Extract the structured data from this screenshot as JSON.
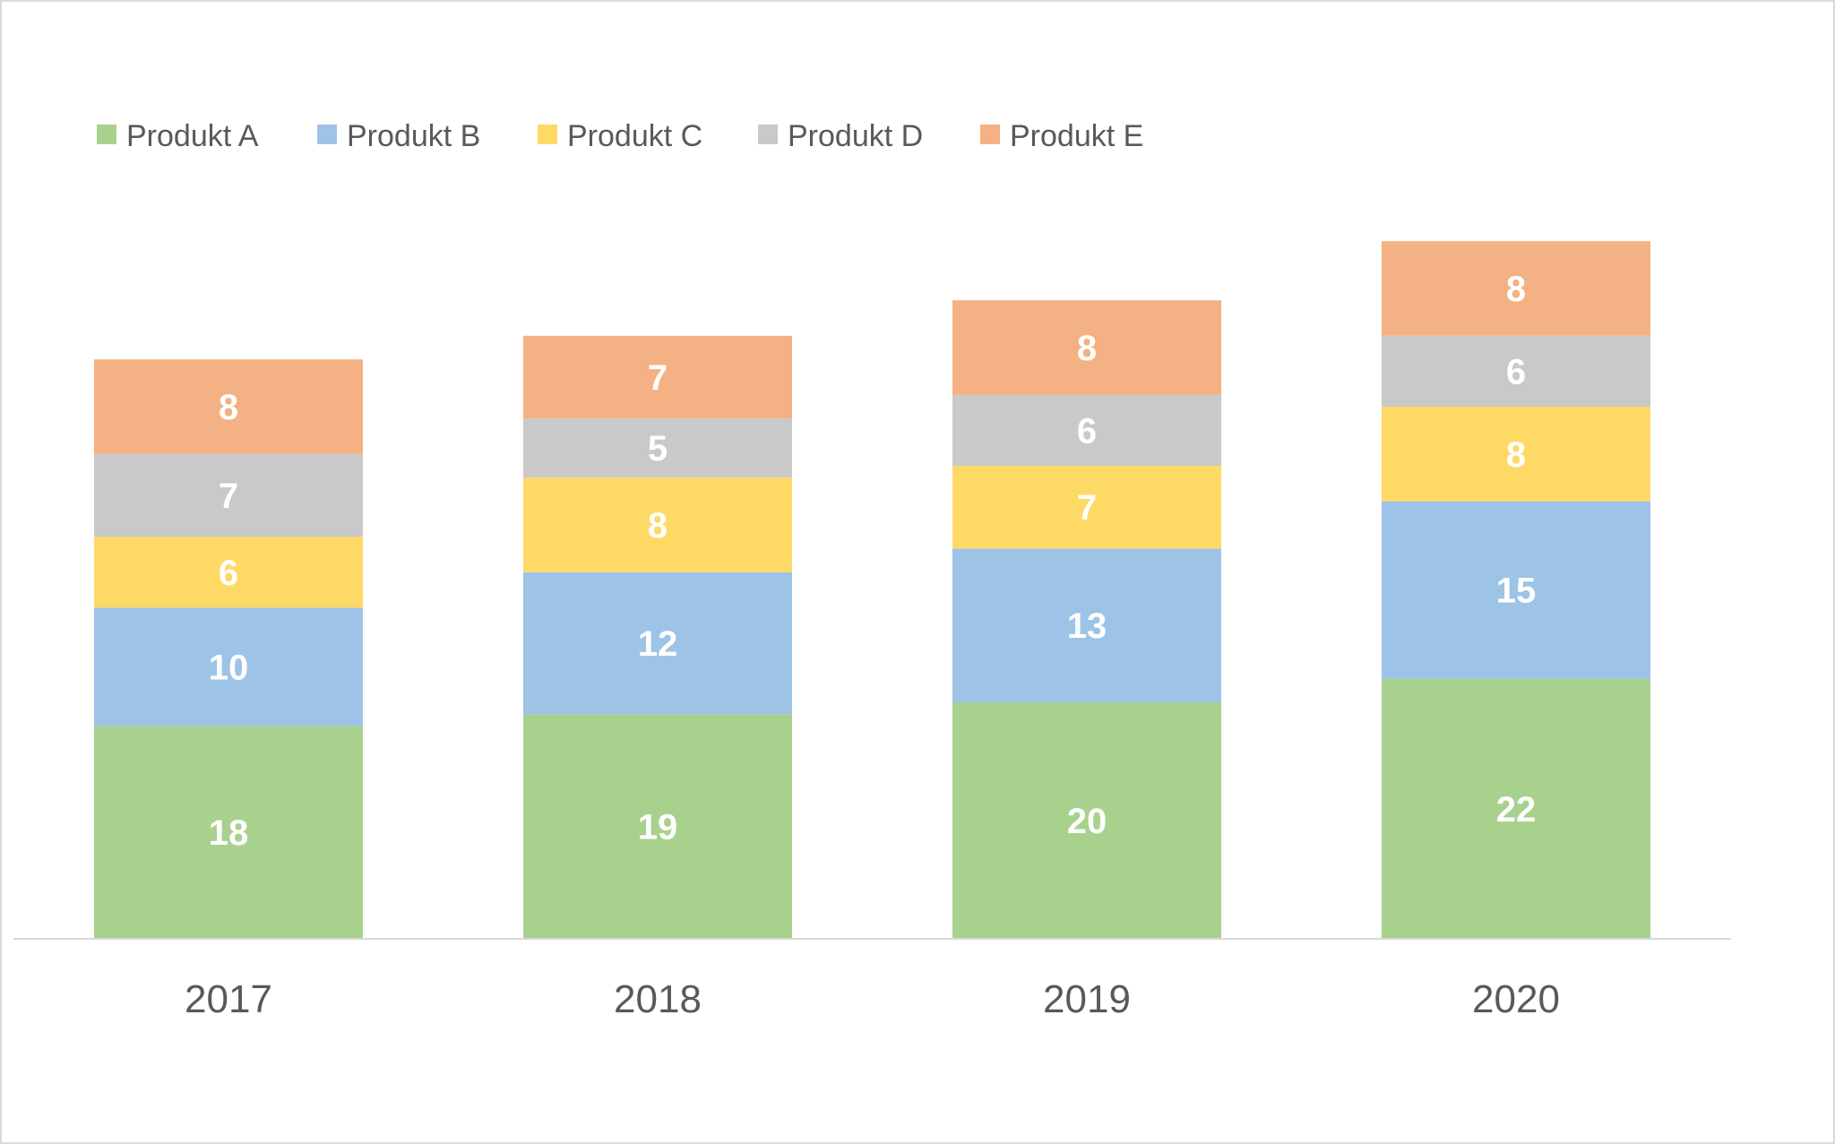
{
  "chart_data": {
    "type": "bar",
    "stacked": true,
    "title": "",
    "xlabel": "",
    "ylabel": "",
    "categories": [
      "2017",
      "2018",
      "2019",
      "2020"
    ],
    "ylim": [
      0,
      80
    ],
    "grid": false,
    "legend_position": "top-left",
    "series": [
      {
        "name": "Produkt A",
        "color": "#a9d18e",
        "values": [
          18,
          19,
          20,
          22
        ]
      },
      {
        "name": "Produkt B",
        "color": "#9dc3e6",
        "values": [
          10,
          12,
          13,
          15
        ]
      },
      {
        "name": "Produkt C",
        "color": "#ffd966",
        "values": [
          6,
          8,
          7,
          8
        ]
      },
      {
        "name": "Produkt D",
        "color": "#c9c9c9",
        "values": [
          7,
          5,
          6,
          6
        ]
      },
      {
        "name": "Produkt E",
        "color": "#f4b183",
        "values": [
          8,
          7,
          8,
          8
        ]
      }
    ]
  }
}
